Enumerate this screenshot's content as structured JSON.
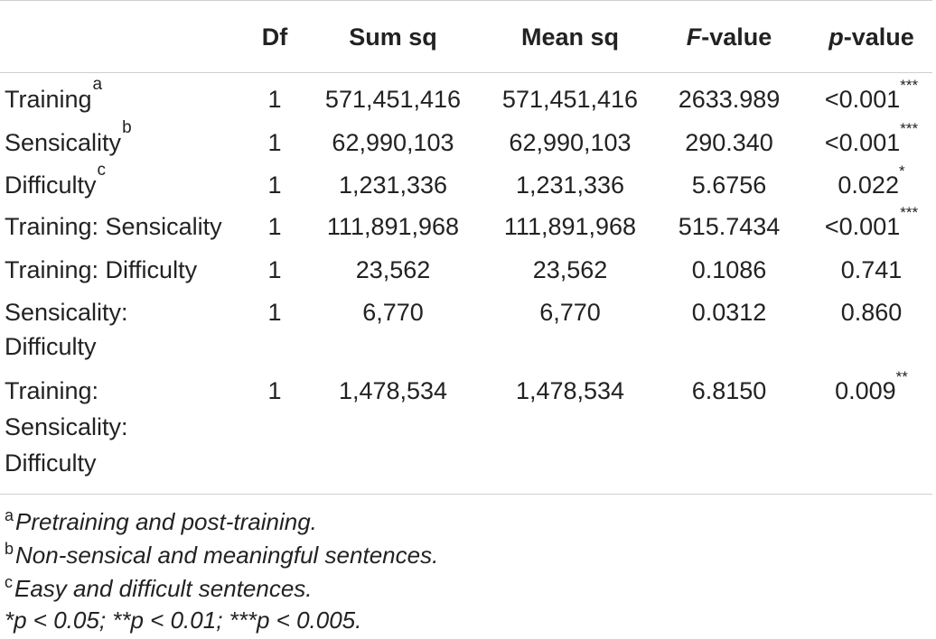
{
  "table": {
    "headers": {
      "term": "",
      "df": "Df",
      "sum_sq": "Sum sq",
      "mean_sq": "Mean sq",
      "f_italic": "F",
      "f_rest": "-value",
      "p_italic": "p",
      "p_rest": "-value"
    },
    "rows": [
      {
        "term": "Training",
        "note": "a",
        "df": "1",
        "sum_sq": "571,451,416",
        "mean_sq": "571,451,416",
        "f": "2633.989",
        "p": "<0.001",
        "stars": "***"
      },
      {
        "term": "Sensicality",
        "note": "b",
        "df": "1",
        "sum_sq": "62,990,103",
        "mean_sq": "62,990,103",
        "f": "290.340",
        "p": "<0.001",
        "stars": "***"
      },
      {
        "term": "Difficulty",
        "note": "c",
        "df": "1",
        "sum_sq": "1,231,336",
        "mean_sq": "1,231,336",
        "f": "5.6756",
        "p": "0.022",
        "stars": "*"
      },
      {
        "term": "Training: Sensicality",
        "note": "",
        "df": "1",
        "sum_sq": "111,891,968",
        "mean_sq": "111,891,968",
        "f": "515.7434",
        "p": "<0.001",
        "stars": "***"
      },
      {
        "term": "Training: Difficulty",
        "note": "",
        "df": "1",
        "sum_sq": "23,562",
        "mean_sq": "23,562",
        "f": "0.1086",
        "p": "0.741",
        "stars": ""
      },
      {
        "term_line1": "Sensicality:",
        "term_line2": "Difficulty",
        "note": "",
        "df": "1",
        "sum_sq": "6,770",
        "mean_sq": "6,770",
        "f": "0.0312",
        "p": "0.860",
        "stars": ""
      },
      {
        "term_line1": "Training:",
        "term_line2": "Sensicality:",
        "term_line3": "Difficulty",
        "note": "",
        "df": "1",
        "sum_sq": "1,478,534",
        "mean_sq": "1,478,534",
        "f": "6.8150",
        "p": "0.009",
        "stars": "**"
      }
    ]
  },
  "footnotes": [
    {
      "mark": "a",
      "text": "Pretraining and post-training."
    },
    {
      "mark": "b",
      "text": "Non-sensical and meaningful sentences."
    },
    {
      "mark": "c",
      "text": "Easy and difficult sentences."
    },
    {
      "mark": "",
      "text": "*p < 0.05; **p < 0.01; ***p < 0.005."
    }
  ]
}
